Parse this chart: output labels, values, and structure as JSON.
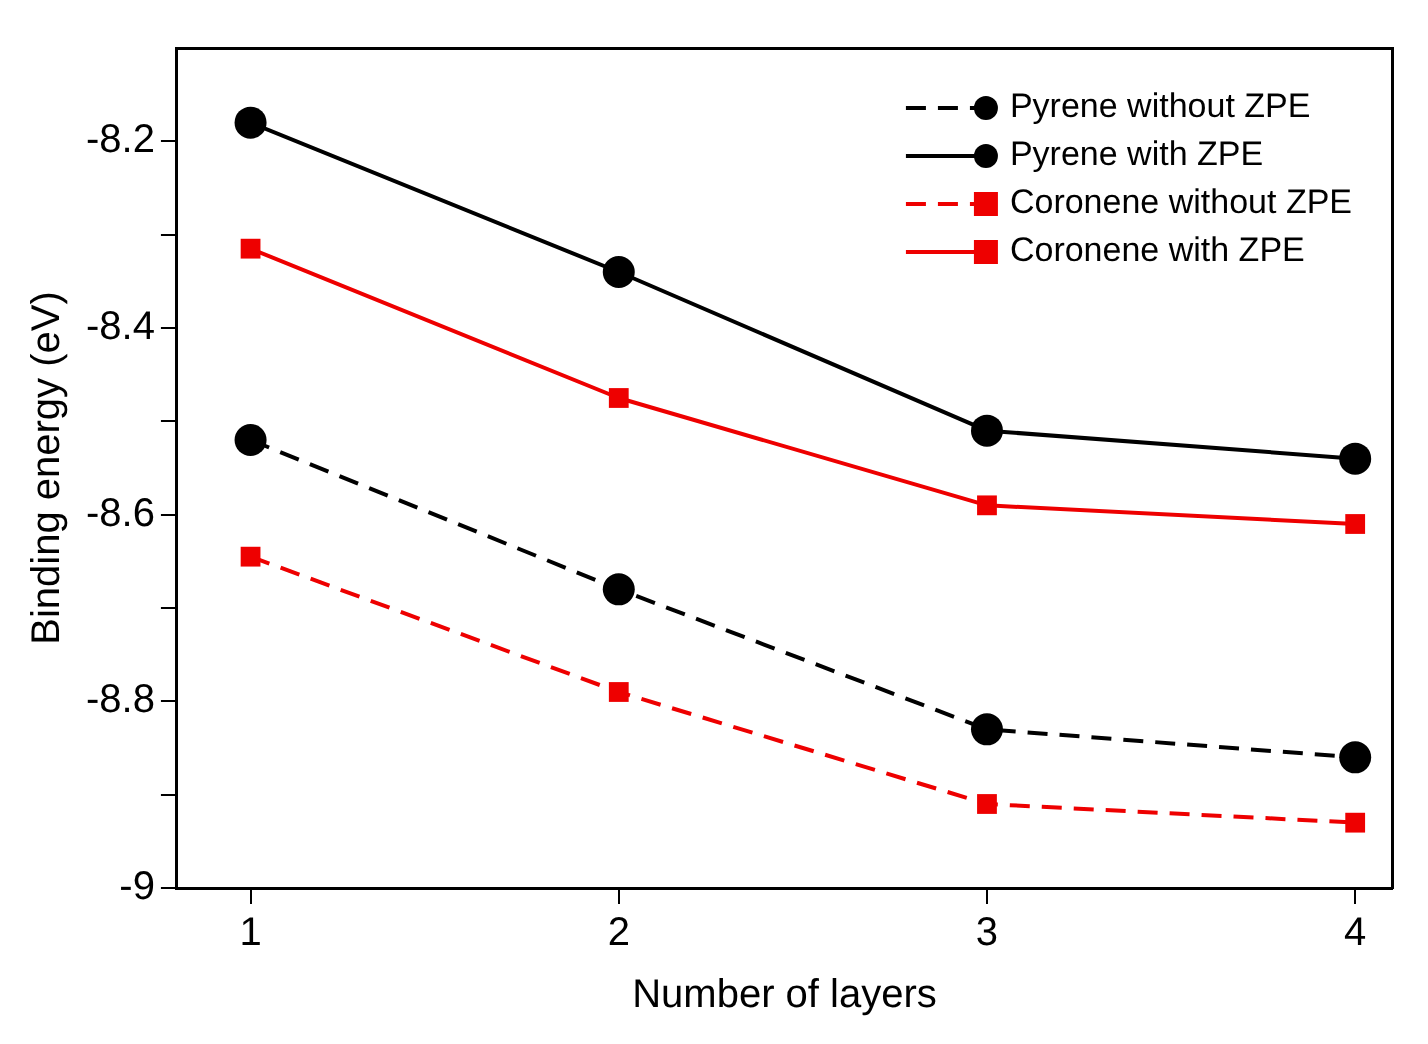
{
  "chart_data": {
    "type": "line",
    "xlabel": "Number of layers",
    "ylabel": "Binding energy (eV)",
    "x": [
      1,
      2,
      3,
      4
    ],
    "series": [
      {
        "name": "Pyrene without ZPE",
        "color": "#000000",
        "line_style": "dashed",
        "marker": "circle",
        "values": [
          -8.52,
          -8.68,
          -8.83,
          -8.86
        ]
      },
      {
        "name": "Pyrene with ZPE",
        "color": "#000000",
        "line_style": "solid",
        "marker": "circle",
        "values": [
          -8.18,
          -8.34,
          -8.51,
          -8.54
        ]
      },
      {
        "name": "Coronene without ZPE",
        "color": "#ee0000",
        "line_style": "dashed",
        "marker": "square",
        "values": [
          -8.645,
          -8.79,
          -8.91,
          -8.93
        ]
      },
      {
        "name": "Coronene with ZPE",
        "color": "#ee0000",
        "line_style": "solid",
        "marker": "square",
        "values": [
          -8.315,
          -8.475,
          -8.59,
          -8.61
        ]
      }
    ],
    "xlim": [
      0.8,
      4.1
    ],
    "xticks": [
      1,
      2,
      3,
      4
    ],
    "ylim": [
      -9,
      -8.1
    ],
    "yticks": [
      -9,
      {
        "value": -8.9,
        "label": null
      },
      -8.8,
      {
        "value": -8.7,
        "label": null
      },
      -8.6,
      {
        "value": -8.5,
        "label": null
      },
      -8.4,
      {
        "value": -8.3,
        "label": null
      },
      -8.2
    ],
    "grid": false,
    "legend": "top right"
  }
}
